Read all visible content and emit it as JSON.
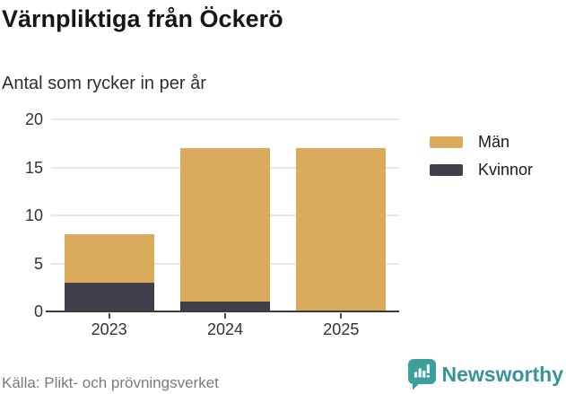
{
  "header": {
    "title": "Värnpliktiga från Öckerö",
    "subtitle": "Antal som rycker in per år"
  },
  "chart_data": {
    "type": "bar",
    "stacked": true,
    "title": "Värnpliktiga från Öckerö",
    "subtitle": "Antal som rycker in per år",
    "xlabel": "",
    "ylabel": "",
    "categories": [
      "2023",
      "2024",
      "2025"
    ],
    "series": [
      {
        "name": "Män",
        "color": "#d9ab5a",
        "values": [
          5,
          16,
          17
        ]
      },
      {
        "name": "Kvinnor",
        "color": "#413f4c",
        "values": [
          3,
          1,
          0
        ]
      }
    ],
    "totals": [
      8,
      17,
      17
    ],
    "ylim": [
      0,
      20
    ],
    "yticks": [
      0,
      5,
      10,
      15,
      20
    ],
    "grid": true,
    "legend_position": "right"
  },
  "legend": {
    "items": [
      {
        "label": "Män",
        "color": "#d9ab5a"
      },
      {
        "label": "Kvinnor",
        "color": "#413f4c"
      }
    ]
  },
  "footer": {
    "source": "Källa: Plikt- och prövningsverket",
    "brand": "Newsworthy",
    "brand_color": "#38939b",
    "brand_icon": "bar-chart-speech-bubble-icon",
    "brand_icon_color": "#3ba09c"
  }
}
